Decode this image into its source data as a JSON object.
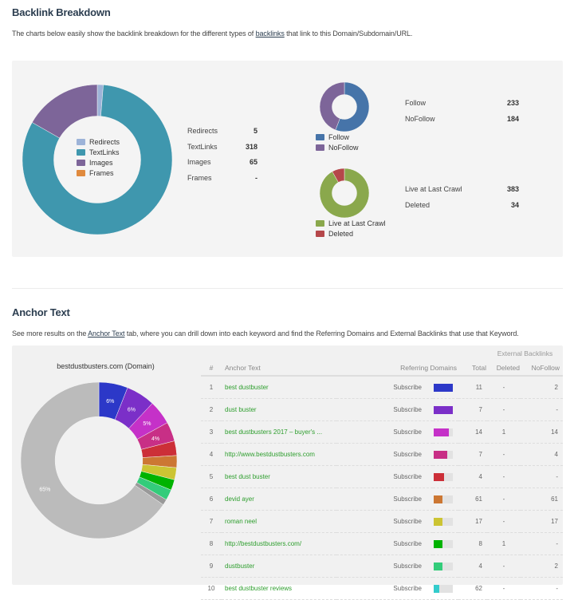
{
  "backlink": {
    "title": "Backlink Breakdown",
    "desc_before": "The charts below easily show the backlink breakdown for the different types of ",
    "desc_link": "backlinks",
    "desc_after": " that link to this Domain/Subdomain/URL.",
    "types": {
      "items": [
        {
          "label": "Redirects",
          "value": 5,
          "display": "5",
          "color": "#9db3d8"
        },
        {
          "label": "TextLinks",
          "value": 318,
          "display": "318",
          "color": "#3f97ae"
        },
        {
          "label": "Images",
          "value": 65,
          "display": "65",
          "color": "#7d6599"
        },
        {
          "label": "Frames",
          "value": 0,
          "display": "-",
          "color": "#e08a3e"
        }
      ]
    },
    "follow": {
      "items": [
        {
          "label": "Follow",
          "value": 233,
          "display": "233",
          "color": "#4674a9"
        },
        {
          "label": "NoFollow",
          "value": 184,
          "display": "184",
          "color": "#7d6599"
        }
      ]
    },
    "live": {
      "items": [
        {
          "label": "Live at Last Crawl",
          "value": 383,
          "display": "383",
          "color": "#8aa84c"
        },
        {
          "label": "Deleted",
          "value": 34,
          "display": "34",
          "color": "#b5474a"
        }
      ]
    }
  },
  "anchor": {
    "title": "Anchor Text",
    "desc_before": "See more results on the ",
    "desc_link": "Anchor Text",
    "desc_after": " tab, where you can drill down into each keyword and find the Referring Domains and External Backlinks that use that Keyword.",
    "chart_title": "bestdustbusters.com (Domain)",
    "table": {
      "group_header": "External Backlinks",
      "headers": [
        "#",
        "Anchor Text",
        "Referring Domains",
        "Total",
        "Deleted",
        "NoFollow"
      ],
      "rows": [
        {
          "n": "1",
          "text": "best dustbuster",
          "rd": "Subscribe",
          "fill": 1.0,
          "color": "#2c38c8",
          "total": "11",
          "deleted": "-",
          "nofollow": "2"
        },
        {
          "n": "2",
          "text": "dust buster",
          "rd": "Subscribe",
          "fill": 1.0,
          "color": "#7b2fc8",
          "total": "7",
          "deleted": "-",
          "nofollow": "-"
        },
        {
          "n": "3",
          "text": "best dustbusters 2017 – buyer's ...",
          "rd": "Subscribe",
          "fill": 0.8,
          "color": "#c531c8",
          "total": "14",
          "deleted": "1",
          "nofollow": "14"
        },
        {
          "n": "4",
          "text": "http://www.bestdustbusters.com",
          "rd": "Subscribe",
          "fill": 0.7,
          "color": "#c82f86",
          "total": "7",
          "deleted": "-",
          "nofollow": "4"
        },
        {
          "n": "5",
          "text": "best dust buster",
          "rd": "Subscribe",
          "fill": 0.55,
          "color": "#cc2f38",
          "total": "4",
          "deleted": "-",
          "nofollow": "-"
        },
        {
          "n": "6",
          "text": "devid ayer",
          "rd": "Subscribe",
          "fill": 0.45,
          "color": "#cc7733",
          "total": "61",
          "deleted": "-",
          "nofollow": "61"
        },
        {
          "n": "7",
          "text": "roman neel",
          "rd": "Subscribe",
          "fill": 0.45,
          "color": "#ccc433",
          "total": "17",
          "deleted": "-",
          "nofollow": "17"
        },
        {
          "n": "8",
          "text": "http://bestdustbusters.com/",
          "rd": "Subscribe",
          "fill": 0.45,
          "color": "#00b300",
          "total": "8",
          "deleted": "1",
          "nofollow": "-"
        },
        {
          "n": "9",
          "text": "dustbuster",
          "rd": "Subscribe",
          "fill": 0.45,
          "color": "#33cc7a",
          "total": "4",
          "deleted": "-",
          "nofollow": "2"
        },
        {
          "n": "10",
          "text": "best dustbuster reviews",
          "rd": "Subscribe",
          "fill": 0.3,
          "color": "#33cccc",
          "total": "62",
          "deleted": "-",
          "nofollow": "-"
        }
      ]
    }
  },
  "chart_data": [
    {
      "type": "pie",
      "title": "Backlink types",
      "categories": [
        "Redirects",
        "TextLinks",
        "Images",
        "Frames"
      ],
      "values": [
        5,
        318,
        65,
        0
      ]
    },
    {
      "type": "pie",
      "title": "Follow / NoFollow",
      "categories": [
        "Follow",
        "NoFollow"
      ],
      "values": [
        233,
        184
      ]
    },
    {
      "type": "pie",
      "title": "Live / Deleted",
      "categories": [
        "Live at Last Crawl",
        "Deleted"
      ],
      "values": [
        383,
        34
      ]
    },
    {
      "type": "pie",
      "title": "bestdustbusters.com (Domain)",
      "categories": [
        "best dustbuster",
        "dust buster",
        "best dustbusters 2017 – buyer's ...",
        "http://www.bestdustbusters.com",
        "best dust buster",
        "devid ayer",
        "roman neel",
        "http://bestdustbusters.com/",
        "dustbuster",
        "best dustbuster reviews",
        "other"
      ],
      "values": [
        6,
        6,
        5,
        4,
        3,
        2.5,
        2.5,
        2.2,
        2.2,
        1.2,
        65.4
      ],
      "labels": [
        "6%",
        "6%",
        "5%",
        "4%",
        "",
        "",
        "",
        "",
        "",
        "",
        "65%"
      ],
      "colors": [
        "#2c38c8",
        "#7b2fc8",
        "#c531c8",
        "#c82f86",
        "#cc2f38",
        "#cc7733",
        "#ccc433",
        "#00b300",
        "#33cc7a",
        "#999999",
        "#bbbbbb"
      ]
    }
  ]
}
